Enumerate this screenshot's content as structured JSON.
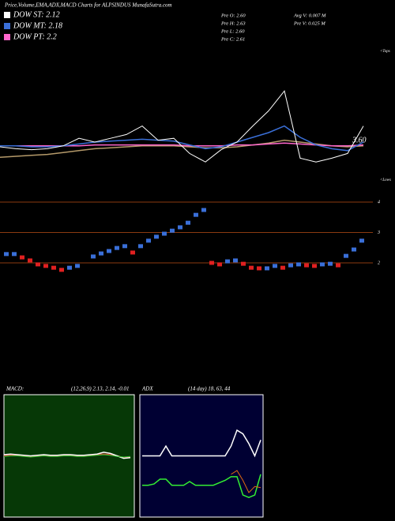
{
  "chart_data": [
    {
      "type": "line",
      "title": "Price,Volume,EMA,ADX,MACD Charts for ALPSINDUS MunafaSutra.com",
      "legend": [
        {
          "label": "DOW ST: 2.12",
          "color": "#ffffff"
        },
        {
          "label": "DOW MT: 2.18",
          "color": "#3a6fd8"
        },
        {
          "label": "DOW PT: 2.2",
          "color": "#ff66cc"
        }
      ],
      "info": [
        "Pre  O: 2.60",
        "Pre  H: 2.63",
        "Pre  L: 2.60",
        "Pre  C: 2.61"
      ],
      "volume_info": [
        "Avg V: 0.007 M",
        "Pre  V: 0.025 M"
      ],
      "annotations": {
        "last": "3.60",
        "tops": "<Tops",
        "lows": "<Lows"
      },
      "ylim": [
        3.0,
        4.5
      ],
      "series": [
        {
          "color": "#b59a6a",
          "values": [
            3.34,
            3.35,
            3.36,
            3.37,
            3.39,
            3.41,
            3.43,
            3.44,
            3.45,
            3.46,
            3.46,
            3.46,
            3.45,
            3.44,
            3.44,
            3.45,
            3.47,
            3.49,
            3.52,
            3.5,
            3.48,
            3.46,
            3.45,
            3.46
          ]
        },
        {
          "color": "#ff66cc",
          "values": [
            3.46,
            3.46,
            3.46,
            3.46,
            3.46,
            3.46,
            3.47,
            3.47,
            3.47,
            3.47,
            3.47,
            3.47,
            3.46,
            3.46,
            3.46,
            3.47,
            3.47,
            3.48,
            3.49,
            3.48,
            3.47,
            3.46,
            3.46,
            3.47
          ]
        },
        {
          "color": "#3a6fd8",
          "values": [
            3.46,
            3.46,
            3.45,
            3.45,
            3.46,
            3.48,
            3.5,
            3.51,
            3.52,
            3.53,
            3.52,
            3.51,
            3.47,
            3.43,
            3.45,
            3.5,
            3.55,
            3.6,
            3.67,
            3.55,
            3.47,
            3.43,
            3.41,
            3.5
          ]
        },
        {
          "color": "#ffffff",
          "values": [
            3.45,
            3.43,
            3.42,
            3.43,
            3.46,
            3.54,
            3.5,
            3.54,
            3.58,
            3.67,
            3.52,
            3.54,
            3.38,
            3.29,
            3.42,
            3.5,
            3.67,
            3.83,
            4.04,
            3.33,
            3.29,
            3.33,
            3.38,
            3.67
          ]
        }
      ]
    },
    {
      "type": "candle",
      "ylim": [
        0,
        4
      ],
      "yticks": [
        2,
        3,
        4
      ],
      "up_color": "#3a6fd8",
      "down_color": "#e02020",
      "values": [
        2.29,
        2.29,
        2.18,
        2.08,
        1.95,
        1.9,
        1.84,
        1.77,
        1.84,
        1.9,
        null,
        2.21,
        2.31,
        2.39,
        2.49,
        2.55,
        2.34,
        2.55,
        2.73,
        2.86,
        2.96,
        3.06,
        3.17,
        3.32,
        3.58,
        3.74,
        2.0,
        1.95,
        2.05,
        2.08,
        1.97,
        1.84,
        1.82,
        1.82,
        1.9,
        1.84,
        1.92,
        1.95,
        1.92,
        1.9,
        1.95,
        1.97,
        1.92,
        2.23,
        2.44,
        2.73
      ]
    },
    {
      "type": "line",
      "title": "MACD:",
      "subtitle": "(12,26,9) 2.13, 2.14, -0.01",
      "background": "#063806",
      "ylim": [
        -1,
        1
      ],
      "series": [
        {
          "color": "#e03030",
          "values": [
            0.0,
            0.01,
            0.01,
            0.0,
            -0.01,
            0.0,
            0.01,
            0.0,
            0.0,
            0.01,
            0.01,
            0.0,
            0.0,
            0.01,
            0.02,
            0.03,
            0.02,
            0.0,
            -0.03,
            -0.02
          ]
        },
        {
          "color": "#ffffff",
          "values": [
            0.02,
            0.03,
            0.02,
            0.01,
            0.0,
            0.01,
            0.02,
            0.01,
            0.01,
            0.02,
            0.02,
            0.01,
            0.01,
            0.02,
            0.03,
            0.06,
            0.04,
            0.0,
            -0.04,
            -0.03
          ]
        },
        {
          "color": "#33cc33",
          "values": [
            -0.01,
            0.0,
            0.0,
            -0.01,
            -0.02,
            -0.01,
            0.0,
            -0.01,
            -0.01,
            0.0,
            0.0,
            -0.01,
            -0.01,
            0.0,
            0.01,
            0.02,
            0.01,
            -0.01,
            -0.02,
            -0.01
          ]
        }
      ]
    },
    {
      "type": "line",
      "title": "ADX",
      "subtitle": "(14 day) 18, 63, 44",
      "background": "#000033",
      "ylim": [
        0,
        100
      ],
      "series": [
        {
          "color": "#ffffff",
          "values": [
            50,
            50,
            50,
            50,
            58,
            50,
            50,
            50,
            50,
            50,
            50,
            50,
            50,
            50,
            50,
            58,
            71,
            68,
            60,
            50,
            63
          ]
        },
        {
          "color": "#33ee33",
          "values": [
            26,
            26,
            27,
            31,
            31,
            26,
            26,
            26,
            29,
            26,
            26,
            26,
            26,
            28,
            30,
            33,
            33,
            18,
            16,
            18,
            35
          ]
        },
        {
          "color": "#e06a10",
          "values": [
            null,
            null,
            null,
            null,
            null,
            null,
            null,
            null,
            null,
            null,
            null,
            null,
            null,
            null,
            null,
            35,
            38,
            30,
            20,
            25,
            24
          ]
        }
      ]
    }
  ]
}
